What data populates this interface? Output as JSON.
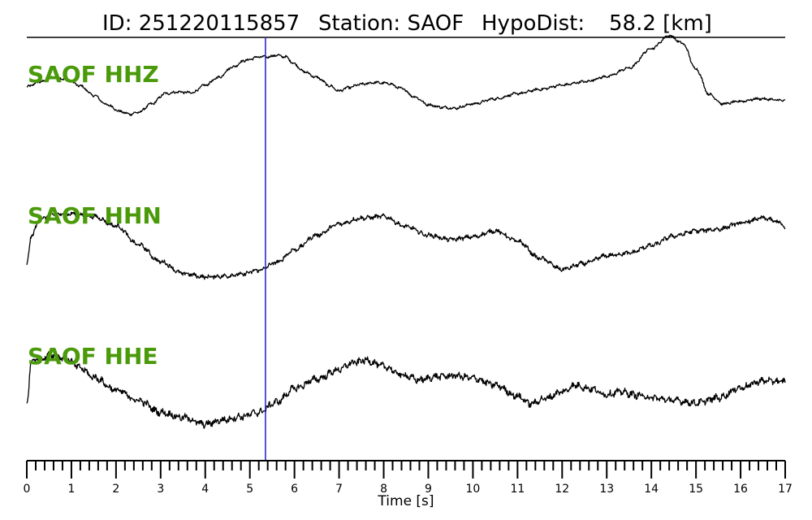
{
  "title": {
    "id_label": "ID: 251220115857",
    "station_label": "Station: SAOF",
    "dist_label": "HypoDist:",
    "dist_value": "58.2 [km]"
  },
  "colors": {
    "trace": "#000000",
    "pick": "#1f1fcc",
    "channel_label": "#4a9a0a"
  },
  "chart_data": {
    "type": "line",
    "xlabel": "Time [s]",
    "xlim": [
      0,
      17
    ],
    "ticks": [
      "0",
      "1",
      "2",
      "3",
      "4",
      "5",
      "6",
      "7",
      "8",
      "9",
      "10",
      "11",
      "12",
      "13",
      "14",
      "15",
      "16",
      "17"
    ],
    "minor_tick_step": 0.2,
    "pick_time": 5.35,
    "series": [
      {
        "name": "SAOF HHZ",
        "noise": 0.6,
        "x": [
          0,
          0.3,
          0.6,
          0.9,
          1.2,
          1.5,
          1.8,
          2.1,
          2.3,
          2.5,
          2.8,
          3.1,
          3.4,
          3.7,
          4.0,
          4.3,
          4.6,
          4.9,
          5.2,
          5.4,
          5.6,
          5.8,
          6.0,
          6.2,
          6.5,
          6.8,
          7.0,
          7.2,
          7.5,
          7.8,
          8.1,
          8.4,
          8.7,
          9.0,
          9.3,
          9.6,
          10.0,
          10.5,
          11.0,
          11.5,
          12.0,
          12.5,
          13.0,
          13.5,
          14.0,
          14.4,
          14.7,
          15.0,
          15.3,
          15.6,
          16.0,
          16.4,
          17.0
        ],
        "y": [
          1.5,
          4.5,
          7.0,
          6.0,
          2.0,
          -3.5,
          -9.0,
          -13.0,
          -14.5,
          -13.5,
          -8.5,
          -2.5,
          -1.5,
          -2.0,
          2.5,
          7.0,
          13.0,
          17.0,
          19.0,
          19.0,
          20.0,
          19.0,
          15.0,
          10.5,
          7.0,
          2.0,
          -1.0,
          1.0,
          3.0,
          4.0,
          3.5,
          0.5,
          -4.5,
          -9.0,
          -10.5,
          -11.0,
          -8.5,
          -5.5,
          -2.5,
          0.0,
          2.5,
          4.5,
          7.5,
          12.5,
          24.0,
          31.5,
          27.0,
          12.0,
          -3.0,
          -8.5,
          -7.0,
          -5.5,
          -6.5
        ]
      },
      {
        "name": "SAOF HHN",
        "noise": 1.0,
        "x": [
          0,
          0.1,
          0.3,
          0.6,
          1.0,
          1.5,
          2.0,
          2.5,
          3.0,
          3.5,
          4.0,
          4.4,
          4.8,
          5.2,
          5.6,
          6.0,
          6.5,
          7.0,
          7.5,
          8.0,
          8.5,
          9.0,
          9.5,
          10.0,
          10.5,
          11.0,
          11.5,
          12.0,
          12.5,
          13.0,
          13.5,
          14.0,
          14.5,
          15.0,
          15.5,
          16.0,
          16.5,
          16.9,
          17.0
        ],
        "y": [
          -22.0,
          -5.0,
          5.0,
          7.5,
          8.0,
          6.5,
          1.0,
          -10.0,
          -20.0,
          -27.0,
          -29.0,
          -28.5,
          -27.5,
          -25.0,
          -20.5,
          -13.0,
          -4.5,
          2.0,
          5.5,
          6.5,
          0.5,
          -4.5,
          -7.0,
          -5.5,
          -2.0,
          -8.0,
          -18.0,
          -24.5,
          -21.0,
          -16.5,
          -15.0,
          -10.5,
          -5.0,
          -2.0,
          -1.0,
          2.5,
          5.5,
          3.0,
          -1.5
        ]
      },
      {
        "name": "SAOF HHE",
        "noise": 1.6,
        "x": [
          0,
          0.1,
          0.3,
          0.6,
          0.9,
          1.2,
          1.5,
          2.0,
          2.5,
          3.0,
          3.5,
          4.0,
          4.4,
          4.8,
          5.2,
          5.6,
          6.0,
          6.5,
          7.0,
          7.3,
          7.6,
          8.0,
          8.4,
          8.8,
          9.2,
          9.6,
          10.0,
          10.5,
          11.0,
          11.3,
          11.6,
          12.0,
          12.3,
          12.6,
          13.0,
          13.3,
          13.7,
          14.0,
          14.5,
          15.0,
          15.5,
          16.0,
          16.5,
          17.0
        ],
        "y": [
          -21.0,
          5.0,
          6.5,
          9.0,
          6.0,
          1.0,
          -4.5,
          -12.0,
          -18.0,
          -25.0,
          -28.0,
          -32.0,
          -29.5,
          -27.5,
          -25.0,
          -19.0,
          -11.0,
          -5.5,
          0.0,
          4.0,
          5.5,
          2.0,
          -3.0,
          -6.0,
          -4.0,
          -3.5,
          -5.0,
          -9.0,
          -15.5,
          -20.0,
          -17.0,
          -13.0,
          -9.0,
          -11.0,
          -14.5,
          -13.0,
          -15.0,
          -16.5,
          -18.0,
          -19.5,
          -16.5,
          -10.5,
          -6.5,
          -7.0
        ]
      }
    ]
  }
}
